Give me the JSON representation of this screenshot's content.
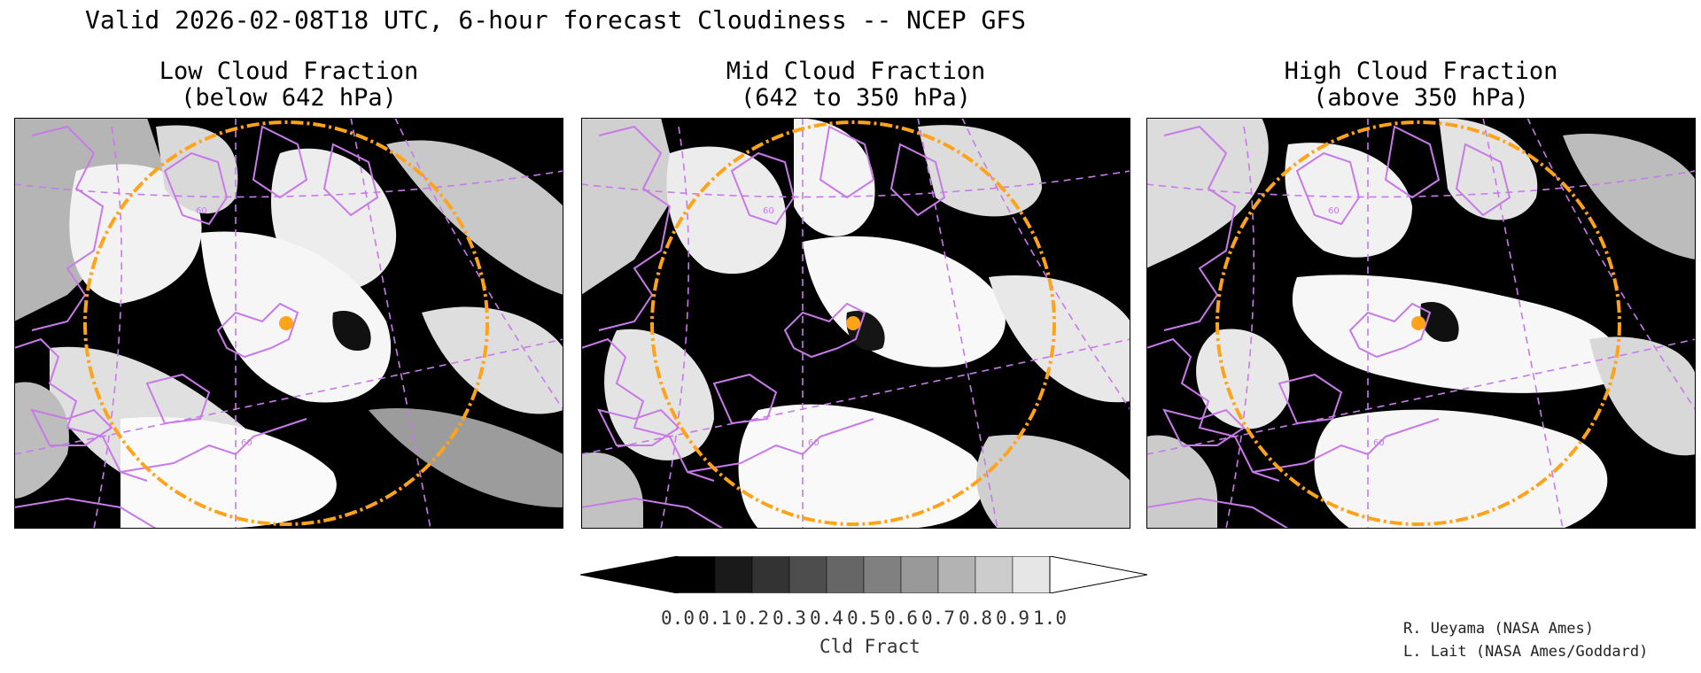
{
  "header": {
    "title": "Valid 2026-02-08T18 UTC, 6-hour forecast Cloudiness -- NCEP GFS"
  },
  "panels": [
    {
      "title_line1": "Low Cloud Fraction",
      "title_line2": "(below 642 hPa)",
      "cloud_pattern": "low"
    },
    {
      "title_line1": "Mid Cloud Fraction",
      "title_line2": "(642 to 350 hPa)",
      "cloud_pattern": "mid"
    },
    {
      "title_line1": "High Cloud Fraction",
      "title_line2": "(above 350 hPa)",
      "cloud_pattern": "high"
    }
  ],
  "map_labels": {
    "lat_label": "60",
    "lon_label": "60"
  },
  "colorbar": {
    "unit_label": "Cld Fract",
    "ticks": [
      "0.0",
      "0.1",
      "0.2",
      "0.3",
      "0.4",
      "0.5",
      "0.6",
      "0.7",
      "0.8",
      "0.9",
      "1.0"
    ],
    "colors": [
      "#000000",
      "#1a1a1a",
      "#333333",
      "#4d4d4d",
      "#666666",
      "#808080",
      "#999999",
      "#b3b3b3",
      "#cccccc",
      "#e6e6e6"
    ],
    "under_color": "#000000",
    "over_color": "#ffffff"
  },
  "credits": {
    "line1": "R. Ueyama (NASA Ames)",
    "line2": "L. Lait (NASA Ames/Goddard)"
  },
  "colors": {
    "coastline": "#c77ae8",
    "range_ring": "#ffa31a",
    "marker": "#ffa31a"
  }
}
